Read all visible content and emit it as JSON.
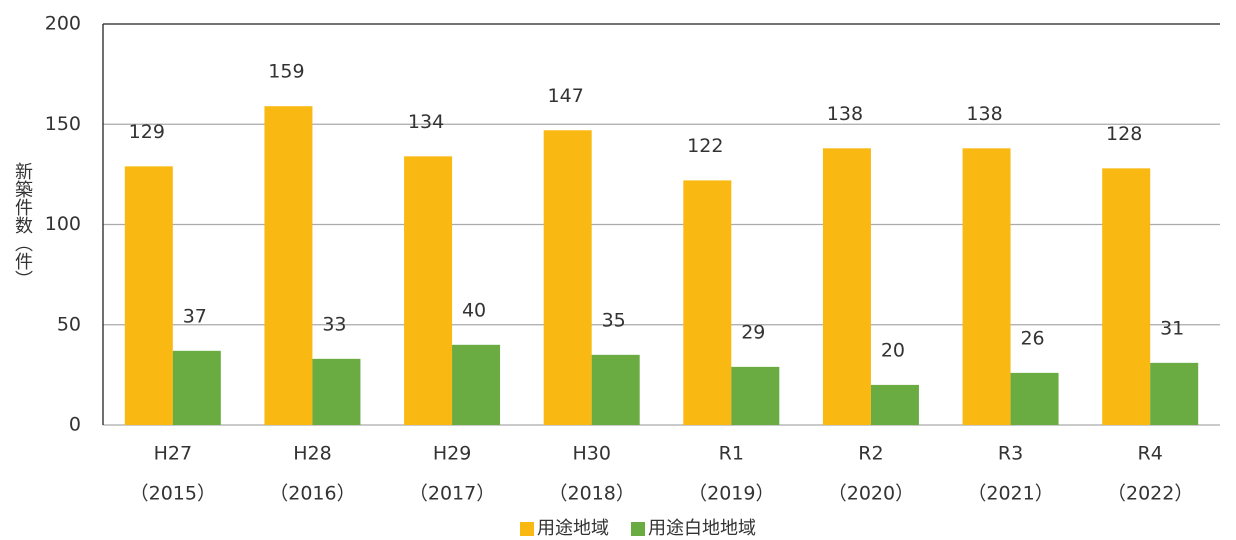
{
  "chart_data": {
    "type": "bar",
    "y_label": "新築件数（件）",
    "categories": [
      [
        "H27",
        "（2015）"
      ],
      [
        "H28",
        "（2016）"
      ],
      [
        "H29",
        "（2017）"
      ],
      [
        "H30",
        "（2018）"
      ],
      [
        "R1",
        "（2019）"
      ],
      [
        "R2",
        "（2020）"
      ],
      [
        "R3",
        "（2021）"
      ],
      [
        "R4",
        "（2022）"
      ]
    ],
    "series": [
      {
        "name": "用途地域",
        "color": "#f9b912",
        "values": [
          129,
          159,
          134,
          147,
          122,
          138,
          138,
          128
        ]
      },
      {
        "name": "用途白地地域",
        "color": "#6aab42",
        "values": [
          37,
          33,
          40,
          35,
          29,
          20,
          26,
          31
        ]
      }
    ],
    "ylim": [
      0,
      200
    ],
    "yticks": [
      0,
      50,
      100,
      150,
      200
    ],
    "grid": true,
    "legend": "bottom"
  }
}
